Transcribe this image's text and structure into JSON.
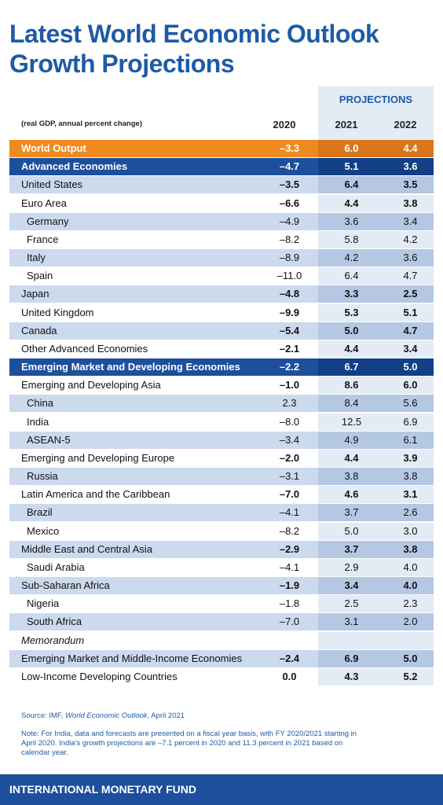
{
  "header": {
    "title_line1": "Latest World Economic Outlook",
    "title_line2": "Growth Projections"
  },
  "table": {
    "projections_label": "PROJECTIONS",
    "unit": "(real GDP, annual percent change)",
    "columns": [
      "2020",
      "2021",
      "2022"
    ],
    "rows": [
      [
        "World Output",
        "–3.3",
        "6.0",
        "4.4"
      ],
      [
        "Advanced Economies",
        "–4.7",
        "5.1",
        "3.6"
      ],
      [
        "United States",
        "–3.5",
        "6.4",
        "3.5"
      ],
      [
        "Euro Area",
        "–6.6",
        "4.4",
        "3.8"
      ],
      [
        "Germany",
        "–4.9",
        "3.6",
        "3.4"
      ],
      [
        "France",
        "–8.2",
        "5.8",
        "4.2"
      ],
      [
        "Italy",
        "–8.9",
        "4.2",
        "3.6"
      ],
      [
        "Spain",
        "–11.0",
        "6.4",
        "4.7"
      ],
      [
        "Japan",
        "–4.8",
        "3.3",
        "2.5"
      ],
      [
        "United Kingdom",
        "–9.9",
        "5.3",
        "5.1"
      ],
      [
        "Canada",
        "–5.4",
        "5.0",
        "4.7"
      ],
      [
        "Other Advanced Economies",
        "–2.1",
        "4.4",
        "3.4"
      ],
      [
        "Emerging Market and Developing Economies",
        "–2.2",
        "6.7",
        "5.0"
      ],
      [
        "Emerging and Developing Asia",
        "–1.0",
        "8.6",
        "6.0"
      ],
      [
        "China",
        "2.3",
        "8.4",
        "5.6"
      ],
      [
        "India",
        "–8.0",
        "12.5",
        "6.9"
      ],
      [
        "ASEAN-5",
        "–3.4",
        "4.9",
        "6.1"
      ],
      [
        "Emerging and Developing Europe",
        "–2.0",
        "4.4",
        "3.9"
      ],
      [
        "Russia",
        "–3.1",
        "3.8",
        "3.8"
      ],
      [
        "Latin America and the Caribbean",
        "–7.0",
        "4.6",
        "3.1"
      ],
      [
        "Brazil",
        "–4.1",
        "3.7",
        "2.6"
      ],
      [
        "Mexico",
        "–8.2",
        "5.0",
        "3.0"
      ],
      [
        "Middle East and Central Asia",
        "–2.9",
        "3.7",
        "3.8"
      ],
      [
        "Saudi Arabia",
        "–4.1",
        "2.9",
        "4.0"
      ],
      [
        "Sub-Saharan Africa",
        "–1.9",
        "3.4",
        "4.0"
      ],
      [
        "Nigeria",
        "–1.8",
        "2.5",
        "2.3"
      ],
      [
        "South Africa",
        "–7.0",
        "3.1",
        "2.0"
      ],
      [
        "Memorandum"
      ],
      [
        "Emerging Market and Middle-Income Economies",
        "–2.4",
        "6.9",
        "5.0"
      ],
      [
        "Low-Income Developing Countries",
        "0.0",
        "4.3",
        "5.2"
      ]
    ]
  },
  "footer": {
    "source_prefix": "Source: IMF, ",
    "source_title": "World Economic Outlook",
    "source_suffix": ", April 2021",
    "note": "Note: For India, data and forecasts are presented on a fiscal year basis, with FY 2020/2021 starting in April 2020. India's growth projections are –7.1 percent in 2020 and 11.3 percent in 2021 based on calendar year.",
    "organization": "INTERNATIONAL MONETARY FUND"
  }
}
